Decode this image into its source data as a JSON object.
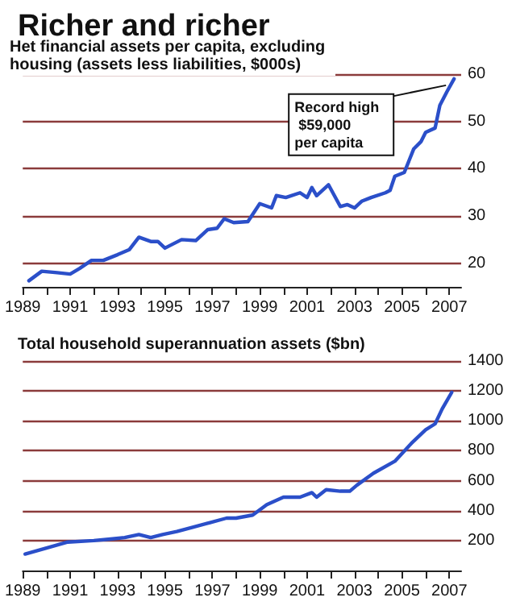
{
  "chart_data": [
    {
      "type": "line",
      "title": "Richer and richer",
      "subtitle": "Het financial assets per capita, excluding housing (assets less liabilities, $000s)",
      "x": [
        1989.26,
        1989.8,
        1990.45,
        1991.0,
        1991.4,
        1991.9,
        1992.4,
        1993.0,
        1993.5,
        1993.9,
        1994.4,
        1994.7,
        1995.0,
        1995.7,
        1996.3,
        1996.8,
        1997.2,
        1997.5,
        1997.9,
        1998.5,
        1999.0,
        1999.5,
        1999.7,
        2000.1,
        2000.7,
        2001.0,
        2001.2,
        2001.4,
        2001.9,
        2002.4,
        2002.7,
        2003.0,
        2003.3,
        2003.7,
        2004.3,
        2004.5,
        2004.7,
        2005.1,
        2005.5,
        2005.8,
        2006.0,
        2006.4,
        2006.6,
        2006.9,
        2007.2
      ],
      "series": [
        {
          "color": "#2b4fc9",
          "values": [
            16.3,
            18.3,
            18.0,
            17.7,
            18.9,
            20.6,
            20.6,
            21.8,
            22.9,
            25.5,
            24.6,
            24.6,
            23.2,
            25.0,
            24.8,
            27.1,
            27.4,
            29.4,
            28.6,
            28.8,
            32.6,
            31.7,
            34.3,
            33.9,
            34.9,
            33.9,
            36.0,
            34.3,
            36.6,
            32.0,
            32.4,
            31.7,
            33.1,
            33.9,
            34.9,
            35.4,
            38.4,
            39.2,
            44.2,
            45.7,
            47.7,
            48.6,
            53.4,
            56.3,
            59
          ]
        }
      ],
      "annotations": [
        {
          "text": "Record high $59,000 per capita",
          "x": 2007.2,
          "y": 59
        }
      ],
      "xlim": [
        1989,
        2007.5
      ],
      "xticks": [
        1989,
        {
          "value": 1990,
          "label": null
        },
        1991,
        {
          "value": 1992,
          "label": null
        },
        1993,
        {
          "value": 1994,
          "label": null
        },
        1995,
        {
          "value": 1996,
          "label": null
        },
        1997,
        {
          "value": 1998,
          "label": null
        },
        1999,
        {
          "value": 2000,
          "label": null
        },
        2001,
        {
          "value": 2002,
          "label": null
        },
        2003,
        {
          "value": 2004,
          "label": null
        },
        2005,
        {
          "value": 2006,
          "label": null
        },
        2007
      ],
      "ylim": [
        15,
        60
      ],
      "yticks": [
        20,
        30,
        40,
        50,
        60
      ],
      "grid": "y",
      "marker": "none",
      "line_style": "solid"
    },
    {
      "type": "line",
      "title": "Total household superannuation assets ($bn)",
      "x": [
        1989.1,
        1990.0,
        1990.9,
        1992.0,
        1992.7,
        1993.3,
        1993.9,
        1994.4,
        1994.9,
        1995.5,
        1996.2,
        1996.9,
        1997.6,
        1998.0,
        1998.7,
        1999.3,
        2000.0,
        2000.7,
        2001.2,
        2001.4,
        2001.8,
        2002.4,
        2002.8,
        2003.1,
        2003.8,
        2004.7,
        2005.4,
        2006.0,
        2006.4,
        2006.7,
        2007.1
      ],
      "series": [
        {
          "color": "#2b4fc9",
          "values": [
            110,
            150,
            190,
            200,
            210,
            220,
            240,
            220,
            240,
            260,
            290,
            320,
            350,
            350,
            370,
            440,
            490,
            490,
            520,
            490,
            540,
            530,
            530,
            570,
            650,
            730,
            850,
            940,
            980,
            1080,
            1190
          ]
        }
      ],
      "xlim": [
        1989,
        2007.5
      ],
      "xticks": [
        1989,
        {
          "value": 1990,
          "label": null
        },
        1991,
        {
          "value": 1992,
          "label": null
        },
        1993,
        {
          "value": 1994,
          "label": null
        },
        1995,
        {
          "value": 1996,
          "label": null
        },
        1997,
        {
          "value": 1998,
          "label": null
        },
        1999,
        {
          "value": 2000,
          "label": null
        },
        2001,
        {
          "value": 2002,
          "label": null
        },
        2003,
        {
          "value": 2004,
          "label": null
        },
        2005,
        {
          "value": 2006,
          "label": null
        },
        2007
      ],
      "ylim": [
        0,
        1400
      ],
      "yticks": [
        200,
        400,
        600,
        800,
        1000,
        1200,
        1400
      ],
      "grid": "y",
      "marker": "none",
      "line_style": "solid"
    }
  ]
}
